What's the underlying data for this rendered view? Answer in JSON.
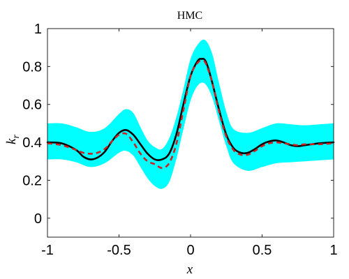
{
  "chart_data": {
    "type": "line",
    "title": "HMC",
    "xlabel": "x",
    "ylabel": "k_r",
    "xlim": [
      -1,
      1
    ],
    "ylim": [
      -0.1,
      1
    ],
    "grid": false,
    "xticks": [
      -1,
      -0.5,
      0,
      0.5,
      1
    ],
    "xtick_labels": [
      "-1",
      "-0.5",
      "0",
      "0.5",
      "1"
    ],
    "yticks": [
      0,
      0.2,
      0.4,
      0.6,
      0.8,
      1
    ],
    "ytick_labels": [
      "0",
      "0.2",
      "0.4",
      "0.6",
      "0.8",
      "1"
    ],
    "band": {
      "x": [
        -1,
        -0.9,
        -0.8,
        -0.7,
        -0.6,
        -0.5,
        -0.45,
        -0.4,
        -0.35,
        -0.3,
        -0.25,
        -0.2,
        -0.15,
        -0.1,
        -0.05,
        0,
        0.05,
        0.1,
        0.15,
        0.2,
        0.25,
        0.3,
        0.4,
        0.5,
        0.6,
        0.7,
        0.8,
        0.9,
        1
      ],
      "lower": [
        0.31,
        0.31,
        0.295,
        0.27,
        0.29,
        0.345,
        0.355,
        0.33,
        0.27,
        0.21,
        0.17,
        0.155,
        0.19,
        0.31,
        0.47,
        0.62,
        0.7,
        0.71,
        0.64,
        0.51,
        0.38,
        0.29,
        0.25,
        0.27,
        0.29,
        0.295,
        0.3,
        0.305,
        0.31
      ],
      "upper": [
        0.5,
        0.5,
        0.48,
        0.455,
        0.475,
        0.55,
        0.575,
        0.555,
        0.48,
        0.41,
        0.375,
        0.365,
        0.42,
        0.53,
        0.68,
        0.84,
        0.915,
        0.94,
        0.87,
        0.71,
        0.56,
        0.47,
        0.45,
        0.475,
        0.5,
        0.495,
        0.49,
        0.495,
        0.5
      ]
    },
    "series": [
      {
        "x": [
          -1,
          -0.9,
          -0.8,
          -0.75,
          -0.7,
          -0.65,
          -0.6,
          -0.55,
          -0.5,
          -0.45,
          -0.4,
          -0.35,
          -0.3,
          -0.25,
          -0.2,
          -0.15,
          -0.1,
          -0.05,
          0,
          0.05,
          0.08,
          0.1,
          0.12,
          0.15,
          0.2,
          0.25,
          0.3,
          0.35,
          0.4,
          0.45,
          0.5,
          0.55,
          0.6,
          0.65,
          0.7,
          0.75,
          0.8,
          0.9,
          1
        ],
        "values": [
          0.4,
          0.395,
          0.36,
          0.325,
          0.31,
          0.32,
          0.35,
          0.405,
          0.45,
          0.465,
          0.44,
          0.39,
          0.34,
          0.31,
          0.31,
          0.34,
          0.44,
          0.6,
          0.75,
          0.83,
          0.84,
          0.835,
          0.8,
          0.72,
          0.57,
          0.44,
          0.37,
          0.345,
          0.345,
          0.365,
          0.39,
          0.405,
          0.41,
          0.4,
          0.385,
          0.38,
          0.385,
          0.395,
          0.4
        ],
        "color": "#000000",
        "style": "solid"
      },
      {
        "x": [
          -1,
          -0.9,
          -0.8,
          -0.75,
          -0.7,
          -0.65,
          -0.6,
          -0.55,
          -0.5,
          -0.45,
          -0.4,
          -0.35,
          -0.3,
          -0.25,
          -0.2,
          -0.15,
          -0.1,
          -0.05,
          0,
          0.05,
          0.08,
          0.1,
          0.12,
          0.15,
          0.2,
          0.25,
          0.3,
          0.35,
          0.4,
          0.45,
          0.5,
          0.55,
          0.6,
          0.65,
          0.7,
          0.75,
          0.8,
          0.9,
          1
        ],
        "values": [
          0.395,
          0.385,
          0.36,
          0.345,
          0.34,
          0.345,
          0.365,
          0.405,
          0.44,
          0.445,
          0.4,
          0.34,
          0.3,
          0.285,
          0.265,
          0.29,
          0.39,
          0.57,
          0.75,
          0.82,
          0.83,
          0.825,
          0.79,
          0.72,
          0.56,
          0.43,
          0.36,
          0.335,
          0.335,
          0.355,
          0.38,
          0.395,
          0.4,
          0.395,
          0.39,
          0.385,
          0.39,
          0.39,
          0.395
        ],
        "color": "#cc2222",
        "style": "dashed"
      }
    ],
    "colors": {
      "band": "#00ffff",
      "axes": "#222222"
    }
  }
}
